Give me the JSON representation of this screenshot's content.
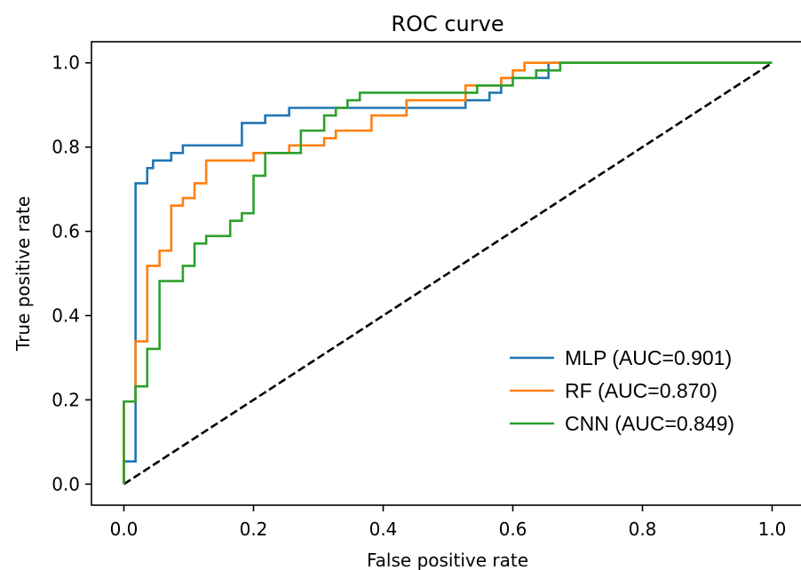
{
  "chart_data": {
    "type": "line",
    "title": "ROC curve",
    "xlabel": "False positive rate",
    "ylabel": "True positive rate",
    "xlim": [
      -0.05,
      1.05
    ],
    "ylim": [
      -0.05,
      1.05
    ],
    "x_ticks": [
      0.0,
      0.2,
      0.4,
      0.6,
      0.8,
      1.0
    ],
    "y_ticks": [
      0.0,
      0.2,
      0.4,
      0.6,
      0.8,
      1.0
    ],
    "x_tick_labels": [
      "0.0",
      "0.2",
      "0.4",
      "0.6",
      "0.8",
      "1.0"
    ],
    "y_tick_labels": [
      "0.0",
      "0.2",
      "0.4",
      "0.6",
      "0.8",
      "1.0"
    ],
    "grid": false,
    "legend_position": "lower-right",
    "series": [
      {
        "name": "MLP (AUC=0.901)",
        "color": "#1f77b4",
        "x": [
          0.0,
          0.0,
          0.018,
          0.018,
          0.036,
          0.036,
          0.045,
          0.045,
          0.055,
          0.055,
          0.073,
          0.073,
          0.091,
          0.091,
          0.182,
          0.182,
          0.218,
          0.218,
          0.255,
          0.255,
          0.527,
          0.527,
          0.545,
          0.545,
          0.564,
          0.564,
          0.582,
          0.582,
          0.618,
          0.618,
          0.655,
          0.655,
          1.0
        ],
        "y": [
          0.0,
          0.054,
          0.054,
          0.714,
          0.714,
          0.75,
          0.75,
          0.768,
          0.768,
          0.768,
          0.768,
          0.786,
          0.786,
          0.804,
          0.804,
          0.857,
          0.857,
          0.875,
          0.875,
          0.893,
          0.893,
          0.911,
          0.911,
          0.911,
          0.911,
          0.929,
          0.929,
          0.964,
          0.964,
          0.964,
          0.964,
          1.0,
          1.0
        ]
      },
      {
        "name": "RF (AUC=0.870)",
        "color": "#ff7f0e",
        "x": [
          0.0,
          0.0,
          0.018,
          0.018,
          0.036,
          0.036,
          0.055,
          0.055,
          0.073,
          0.073,
          0.091,
          0.091,
          0.109,
          0.109,
          0.127,
          0.127,
          0.2,
          0.2,
          0.255,
          0.255,
          0.309,
          0.309,
          0.327,
          0.327,
          0.364,
          0.364,
          0.382,
          0.382,
          0.436,
          0.436,
          0.527,
          0.527,
          0.545,
          0.545,
          0.582,
          0.582,
          0.6,
          0.6,
          0.618,
          0.618,
          1.0
        ],
        "y": [
          0.0,
          0.196,
          0.196,
          0.339,
          0.339,
          0.518,
          0.518,
          0.554,
          0.554,
          0.661,
          0.661,
          0.679,
          0.679,
          0.714,
          0.714,
          0.768,
          0.768,
          0.786,
          0.786,
          0.804,
          0.804,
          0.821,
          0.821,
          0.839,
          0.839,
          0.839,
          0.839,
          0.875,
          0.875,
          0.911,
          0.911,
          0.946,
          0.946,
          0.946,
          0.946,
          0.964,
          0.964,
          0.982,
          0.982,
          1.0,
          1.0
        ]
      },
      {
        "name": "CNN (AUC=0.849)",
        "color": "#2ca02c",
        "x": [
          0.0,
          0.0,
          0.018,
          0.018,
          0.036,
          0.036,
          0.055,
          0.055,
          0.091,
          0.091,
          0.109,
          0.109,
          0.127,
          0.127,
          0.164,
          0.164,
          0.182,
          0.182,
          0.2,
          0.2,
          0.218,
          0.218,
          0.273,
          0.273,
          0.309,
          0.309,
          0.327,
          0.327,
          0.345,
          0.345,
          0.364,
          0.364,
          0.545,
          0.545,
          0.6,
          0.6,
          0.636,
          0.636,
          0.673,
          0.673,
          1.0
        ],
        "y": [
          0.0,
          0.196,
          0.196,
          0.232,
          0.232,
          0.321,
          0.321,
          0.482,
          0.482,
          0.518,
          0.518,
          0.571,
          0.571,
          0.589,
          0.589,
          0.625,
          0.625,
          0.643,
          0.643,
          0.732,
          0.732,
          0.786,
          0.786,
          0.839,
          0.839,
          0.875,
          0.875,
          0.893,
          0.893,
          0.911,
          0.911,
          0.929,
          0.929,
          0.946,
          0.946,
          0.964,
          0.964,
          0.982,
          0.982,
          1.0,
          1.0
        ]
      },
      {
        "color": "#000000",
        "dashed": true,
        "x": [
          0.0,
          1.0
        ],
        "y": [
          0.0,
          1.0
        ]
      }
    ]
  }
}
